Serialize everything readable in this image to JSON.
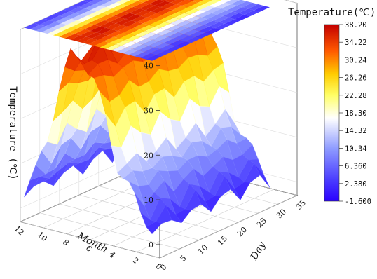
{
  "chart_data": {
    "type": "surface3d",
    "title": "",
    "xlabel": "Month",
    "ylabel": "Day",
    "zlabel": "Temperature (℃)",
    "x_ticks": [
      "0",
      "2",
      "4",
      "6",
      "8",
      "10",
      "12"
    ],
    "y_ticks": [
      "0",
      "5",
      "10",
      "15",
      "20",
      "25",
      "30",
      "35"
    ],
    "z_ticks": [
      "0",
      "10",
      "20",
      "30",
      "40"
    ],
    "xlim": [
      0,
      12
    ],
    "ylim": [
      0,
      35
    ],
    "zlim": [
      -3,
      40
    ],
    "grid": true,
    "colorbar": {
      "title": "Temperature(℃)",
      "position": "right",
      "min": -1.6,
      "max": 38.2,
      "ticks": [
        "38.20",
        "34.22",
        "30.24",
        "26.26",
        "22.28",
        "18.30",
        "14.32",
        "10.34",
        "6.360",
        "2.380",
        "-1.600"
      ],
      "colors": [
        "#2a00ff",
        "#5b66ff",
        "#c6d0ff",
        "#ffffd6",
        "#ffff00",
        "#ffb000",
        "#ff4a00",
        "#c80000"
      ]
    },
    "profile_by_month": {
      "months": [
        1,
        2,
        3,
        4,
        5,
        6,
        7,
        8,
        9,
        10,
        11,
        12
      ],
      "temperature": [
        2,
        5,
        10,
        14,
        24,
        32,
        36,
        36,
        28,
        16,
        8,
        3
      ]
    },
    "projection_plane_z": 40
  }
}
